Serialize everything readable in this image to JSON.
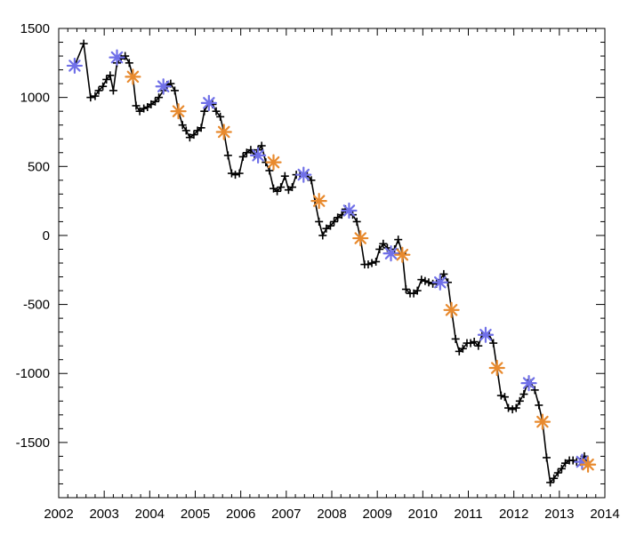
{
  "chart_data": {
    "type": "line",
    "title": "",
    "xlabel": "",
    "ylabel": "",
    "xlim": [
      2002,
      2014
    ],
    "ylim": [
      -1900,
      1500
    ],
    "grid": false,
    "x_ticks": [
      2002,
      2003,
      2004,
      2005,
      2006,
      2007,
      2008,
      2009,
      2010,
      2011,
      2012,
      2013,
      2014
    ],
    "x_tick_labels": [
      "2002",
      "2003",
      "2004",
      "2005",
      "2006",
      "2007",
      "2008",
      "2009",
      "2010",
      "2011",
      "2012",
      "2013",
      "2014"
    ],
    "y_ticks": [
      1500,
      1000,
      500,
      0,
      -500,
      -1000,
      -1500
    ],
    "y_tick_labels": [
      "1500",
      "1000",
      "500",
      "0",
      "-500",
      "-1000",
      "-1500"
    ],
    "series": [
      {
        "color": "#000000",
        "marker": "plus",
        "x": [
          2002.35,
          2002.55,
          2002.7,
          2002.8,
          2002.88,
          2002.97,
          2003.05,
          2003.13,
          2003.2,
          2003.28,
          2003.37,
          2003.46,
          2003.55,
          2003.63,
          2003.7,
          2003.78,
          2003.87,
          2003.95,
          2004.03,
          2004.12,
          2004.2,
          2004.3,
          2004.38,
          2004.46,
          2004.55,
          2004.63,
          2004.72,
          2004.8,
          2004.88,
          2004.97,
          2005.05,
          2005.13,
          2005.2,
          2005.3,
          2005.38,
          2005.46,
          2005.55,
          2005.63,
          2005.72,
          2005.8,
          2005.88,
          2005.97,
          2006.05,
          2006.13,
          2006.22,
          2006.3,
          2006.38,
          2006.46,
          2006.55,
          2006.63,
          2006.72,
          2006.8,
          2006.88,
          2006.97,
          2007.05,
          2007.13,
          2007.22,
          2007.3,
          2007.38,
          2007.46,
          2007.55,
          2007.63,
          2007.72,
          2007.8,
          2007.88,
          2007.97,
          2008.05,
          2008.13,
          2008.22,
          2008.3,
          2008.38,
          2008.46,
          2008.55,
          2008.63,
          2008.72,
          2008.8,
          2008.88,
          2008.97,
          2009.05,
          2009.13,
          2009.22,
          2009.3,
          2009.38,
          2009.46,
          2009.55,
          2009.63,
          2009.72,
          2009.8,
          2009.88,
          2009.97,
          2010.05,
          2010.13,
          2010.22,
          2010.3,
          2010.38,
          2010.46,
          2010.55,
          2010.63,
          2010.72,
          2010.8,
          2010.88,
          2010.97,
          2011.05,
          2011.13,
          2011.22,
          2011.3,
          2011.38,
          2011.46,
          2011.55,
          2011.63,
          2011.72,
          2011.8,
          2011.88,
          2011.97,
          2012.05,
          2012.13,
          2012.22,
          2012.3,
          2012.38,
          2012.46,
          2012.55,
          2012.63,
          2012.72,
          2012.8,
          2012.88,
          2012.97,
          2013.05,
          2013.13,
          2013.22,
          2013.3,
          2013.38,
          2013.46,
          2013.55,
          2013.63
        ],
        "y": [
          1230,
          1390,
          1000,
          1010,
          1050,
          1080,
          1130,
          1160,
          1050,
          1250,
          1280,
          1300,
          1250,
          1150,
          940,
          900,
          920,
          930,
          950,
          970,
          1000,
          1050,
          1090,
          1100,
          1050,
          900,
          800,
          760,
          710,
          730,
          760,
          780,
          900,
          960,
          950,
          900,
          860,
          750,
          580,
          450,
          440,
          450,
          570,
          600,
          620,
          580,
          620,
          650,
          530,
          470,
          340,
          320,
          350,
          430,
          330,
          350,
          440,
          440,
          440,
          440,
          400,
          250,
          100,
          0,
          50,
          70,
          100,
          130,
          150,
          190,
          180,
          150,
          100,
          -20,
          -210,
          -210,
          -200,
          -190,
          -100,
          -60,
          -90,
          -130,
          -100,
          -30,
          -130,
          -390,
          -420,
          -420,
          -400,
          -320,
          -330,
          -340,
          -350,
          -350,
          -320,
          -280,
          -340,
          -540,
          -750,
          -840,
          -820,
          -780,
          -780,
          -770,
          -800,
          -720,
          -720,
          -720,
          -780,
          -960,
          -1160,
          -1170,
          -1250,
          -1260,
          -1250,
          -1200,
          -1150,
          -1070,
          -1070,
          -1120,
          -1230,
          -1350,
          -1610,
          -1790,
          -1760,
          -1720,
          -1690,
          -1650,
          -1630,
          -1630,
          -1640,
          -1640,
          -1600,
          -1660
        ]
      },
      {
        "color": "#7070E8",
        "marker": "asterisk",
        "x": [
          2002.35,
          2003.28,
          2004.3,
          2005.3,
          2006.38,
          2007.38,
          2008.38,
          2009.3,
          2010.38,
          2011.38,
          2012.33,
          2013.5
        ],
        "y": [
          1230,
          1290,
          1080,
          960,
          580,
          440,
          180,
          -130,
          -340,
          -720,
          -1070,
          -1640
        ]
      },
      {
        "color": "#E88A2E",
        "marker": "asterisk",
        "x": [
          2003.63,
          2004.63,
          2005.63,
          2006.72,
          2007.72,
          2008.63,
          2009.55,
          2010.63,
          2011.63,
          2012.63,
          2013.63
        ],
        "y": [
          1150,
          900,
          750,
          530,
          250,
          -20,
          -140,
          -540,
          -960,
          -1350,
          -1660
        ]
      }
    ]
  }
}
